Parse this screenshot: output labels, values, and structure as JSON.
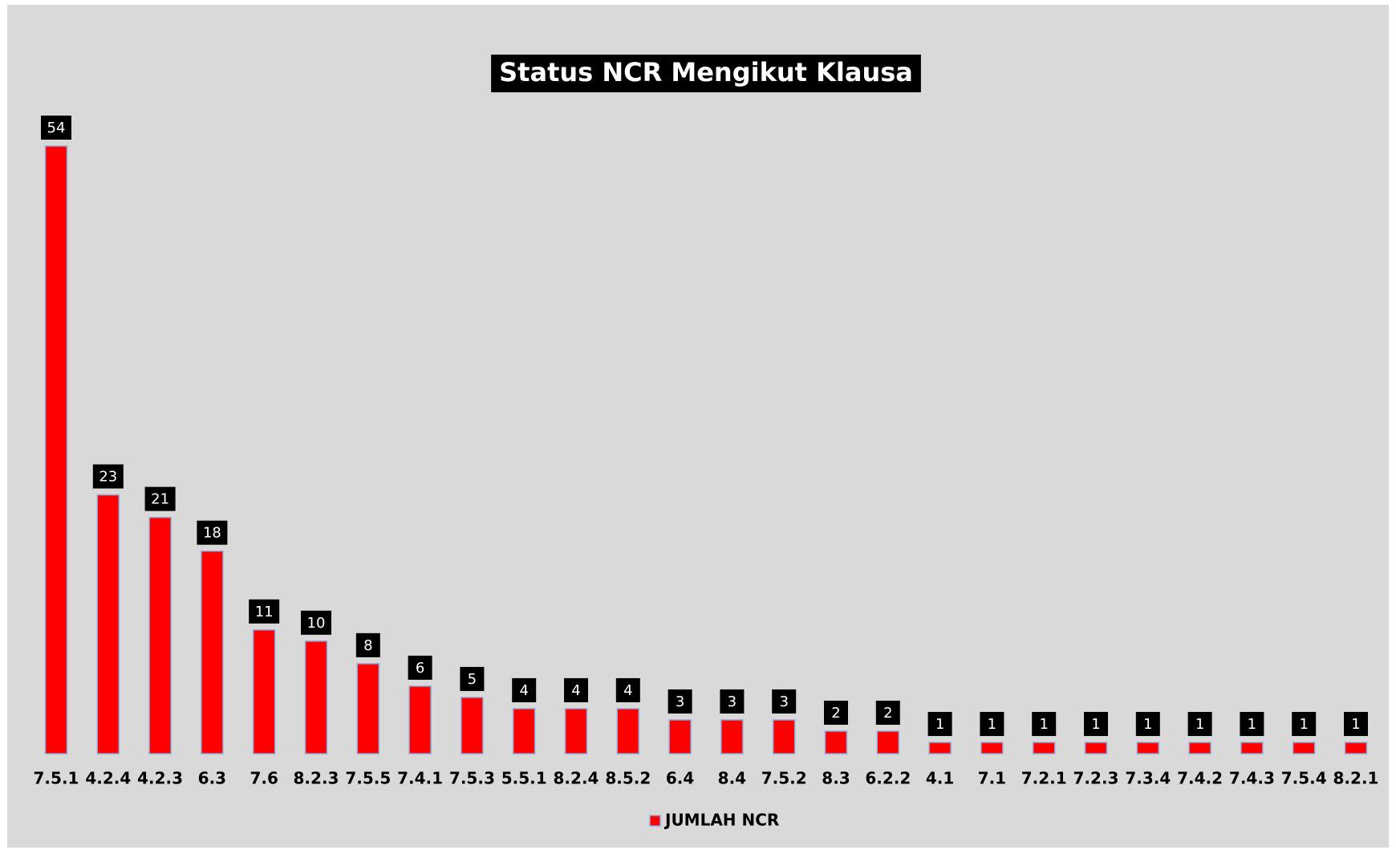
{
  "chart_data": {
    "type": "bar",
    "title": "Status NCR Mengikut Klausa",
    "categories": [
      "7.5.1",
      "4.2.4",
      "4.2.3",
      "6.3",
      "7.6",
      "8.2.3",
      "7.5.5",
      "7.4.1",
      "7.5.3",
      "5.5.1",
      "8.2.4",
      "8.5.2",
      "6.4",
      "8.4",
      "7.5.2",
      "8.3",
      "6.2.2",
      "4.1",
      "7.1",
      "7.2.1",
      "7.2.3",
      "7.3.4",
      "7.4.2",
      "7.4.3",
      "7.5.4",
      "8.2.1"
    ],
    "series": [
      {
        "name": "JUMLAH NCR",
        "color": "#ff0000",
        "values": [
          54,
          23,
          21,
          18,
          11,
          10,
          8,
          6,
          5,
          4,
          4,
          4,
          3,
          3,
          3,
          2,
          2,
          1,
          1,
          1,
          1,
          1,
          1,
          1,
          1,
          1
        ]
      }
    ],
    "legend": "bottom"
  }
}
